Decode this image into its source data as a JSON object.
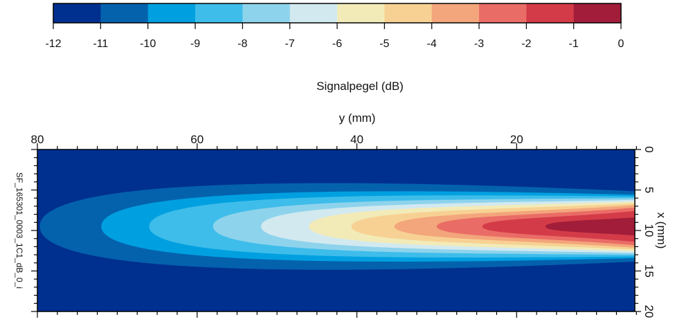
{
  "chart_data": {
    "type": "heatmap",
    "colorbar": {
      "label": "Signalpegel (dB)",
      "ticks": [
        -12,
        -11,
        -10,
        -9,
        -8,
        -7,
        -6,
        -5,
        -4,
        -3,
        -2,
        -1,
        0
      ],
      "colors": [
        "#00308f",
        "#0462ad",
        "#00a0e0",
        "#3ebdea",
        "#8ed3ec",
        "#d2e9f0",
        "#f2ebb8",
        "#f7d193",
        "#f3a57b",
        "#ea6c66",
        "#d33b48",
        "#a11d39"
      ]
    },
    "xaxis": {
      "label": "y (mm)",
      "position": "top",
      "range": [
        80,
        5.2
      ],
      "ticks": [
        80,
        60,
        40,
        20
      ]
    },
    "yaxis": {
      "label": "x (mm)",
      "position": "right",
      "range": [
        0,
        20
      ],
      "ticks": [
        0,
        5,
        10,
        15,
        20
      ]
    },
    "side_label": "SF_165301_0003_1C1_dB_0_i",
    "background_level": -12,
    "contours": [
      {
        "level": -11,
        "tip_y": 79.7,
        "max_halfwidth_x": 6.0,
        "edge_halfwidth_x": 4.3
      },
      {
        "level": -10,
        "tip_y": 72,
        "max_halfwidth_x": 4.7,
        "edge_halfwidth_x": 3.9
      },
      {
        "level": -9,
        "tip_y": 66,
        "max_halfwidth_x": 4.0,
        "edge_halfwidth_x": 3.7
      },
      {
        "level": -8,
        "tip_y": 58,
        "max_halfwidth_x": 3.3,
        "edge_halfwidth_x": 3.5
      },
      {
        "level": -7,
        "tip_y": 52,
        "max_halfwidth_x": 2.8,
        "edge_halfwidth_x": 3.3
      },
      {
        "level": -6,
        "tip_y": 46,
        "max_halfwidth_x": 2.4,
        "edge_halfwidth_x": 3.1
      },
      {
        "level": -5,
        "tip_y": 40.7,
        "max_halfwidth_x": 2.0,
        "edge_halfwidth_x": 2.9
      },
      {
        "level": -4,
        "tip_y": 35.3,
        "max_halfwidth_x": 1.6,
        "edge_halfwidth_x": 2.7
      },
      {
        "level": -3,
        "tip_y": 30,
        "max_halfwidth_x": 1.3,
        "edge_halfwidth_x": 2.4
      },
      {
        "level": -2,
        "tip_y": 24.3,
        "max_halfwidth_x": 1.0,
        "edge_halfwidth_x": 2.0
      },
      {
        "level": -1,
        "tip_y": 16.4,
        "max_halfwidth_x": 0.7,
        "edge_halfwidth_x": 1.2
      }
    ],
    "center_x": 9.5
  }
}
